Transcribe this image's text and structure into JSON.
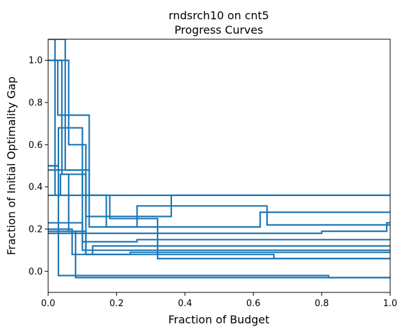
{
  "chart_data": {
    "type": "line",
    "title_line1": "rndsrch10 on cnt5",
    "title_line2": "Progress Curves",
    "xlabel": "Fraction of Budget",
    "ylabel": "Fraction of Initial Optimality Gap",
    "xlim": [
      0,
      1
    ],
    "ylim": [
      -0.1,
      1.1
    ],
    "xticks": [
      "0.0",
      "0.2",
      "0.4",
      "0.6",
      "0.8",
      "1.0"
    ],
    "yticks": [
      "0.0",
      "0.2",
      "0.4",
      "0.6",
      "0.8",
      "1.0"
    ],
    "line_color": "#1f77b4",
    "grid": false,
    "series": [
      {
        "x": [
          0,
          0.028,
          0.028,
          0.12,
          0.12,
          0.26,
          0.26,
          0.64,
          0.64,
          0.82,
          0.82,
          1.0
        ],
        "y": [
          1.0,
          1.0,
          0.74,
          0.74,
          0.21,
          0.21,
          0.31,
          0.31,
          0.22,
          0.22,
          0.22,
          0.22
        ]
      },
      {
        "x": [
          0,
          0.02,
          0.02,
          0.036,
          0.036,
          0.11,
          0.11,
          0.66,
          0.66,
          1.0
        ],
        "y": [
          1.1,
          1.1,
          0.36,
          0.36,
          0.46,
          0.46,
          0.08,
          0.08,
          0.06,
          0.06
        ]
      },
      {
        "x": [
          0,
          0.04,
          0.04,
          0.06,
          0.06,
          0.11,
          0.11,
          0.24,
          0.24,
          1.0
        ],
        "y": [
          1.0,
          1.0,
          0.46,
          0.46,
          0.19,
          0.19,
          0.08,
          0.08,
          0.09,
          0.09
        ]
      },
      {
        "x": [
          0,
          0.05,
          0.05,
          0.1,
          0.1,
          0.26,
          0.26,
          1.0
        ],
        "y": [
          1.1,
          1.1,
          0.48,
          0.48,
          0.14,
          0.14,
          0.15,
          0.15
        ]
      },
      {
        "x": [
          0,
          0.03,
          0.03,
          0.1,
          0.1,
          0.12,
          0.12,
          1.0
        ],
        "y": [
          0.5,
          0.5,
          0.68,
          0.68,
          0.36,
          0.36,
          0.36,
          0.36
        ]
      },
      {
        "x": [
          0,
          0.06,
          0.06,
          0.11,
          0.11,
          0.36,
          0.36,
          1.0
        ],
        "y": [
          1.0,
          1.0,
          0.6,
          0.6,
          0.26,
          0.26,
          0.36,
          0.36
        ]
      },
      {
        "x": [
          0,
          0.04,
          0.04,
          0.12,
          0.12,
          0.18,
          0.18,
          0.32,
          0.32,
          1.0
        ],
        "y": [
          0.48,
          0.48,
          0.48,
          0.48,
          0.36,
          0.36,
          0.25,
          0.25,
          0.06,
          0.06
        ]
      },
      {
        "x": [
          0,
          0.07,
          0.07,
          0.13,
          0.13,
          1.0
        ],
        "y": [
          0.2,
          0.2,
          0.08,
          0.08,
          0.12,
          0.12
        ]
      },
      {
        "x": [
          0,
          0.03,
          0.03,
          0.82,
          0.82,
          1.0
        ],
        "y": [
          0.5,
          0.5,
          -0.02,
          -0.02,
          -0.03,
          -0.03
        ]
      },
      {
        "x": [
          0,
          0.08,
          0.08,
          1.0
        ],
        "y": [
          0.19,
          0.19,
          -0.03,
          -0.03
        ]
      },
      {
        "x": [
          0,
          0.17,
          0.17,
          0.62,
          0.62,
          1.0
        ],
        "y": [
          0.36,
          0.36,
          0.21,
          0.21,
          0.28,
          0.28
        ]
      },
      {
        "x": [
          0,
          0.8,
          0.8,
          0.99,
          0.99,
          1.0
        ],
        "y": [
          0.18,
          0.18,
          0.19,
          0.19,
          0.23,
          0.23
        ]
      },
      {
        "x": [
          0,
          0.1,
          0.1,
          1.0
        ],
        "y": [
          0.23,
          0.23,
          0.1,
          0.1
        ]
      }
    ]
  }
}
